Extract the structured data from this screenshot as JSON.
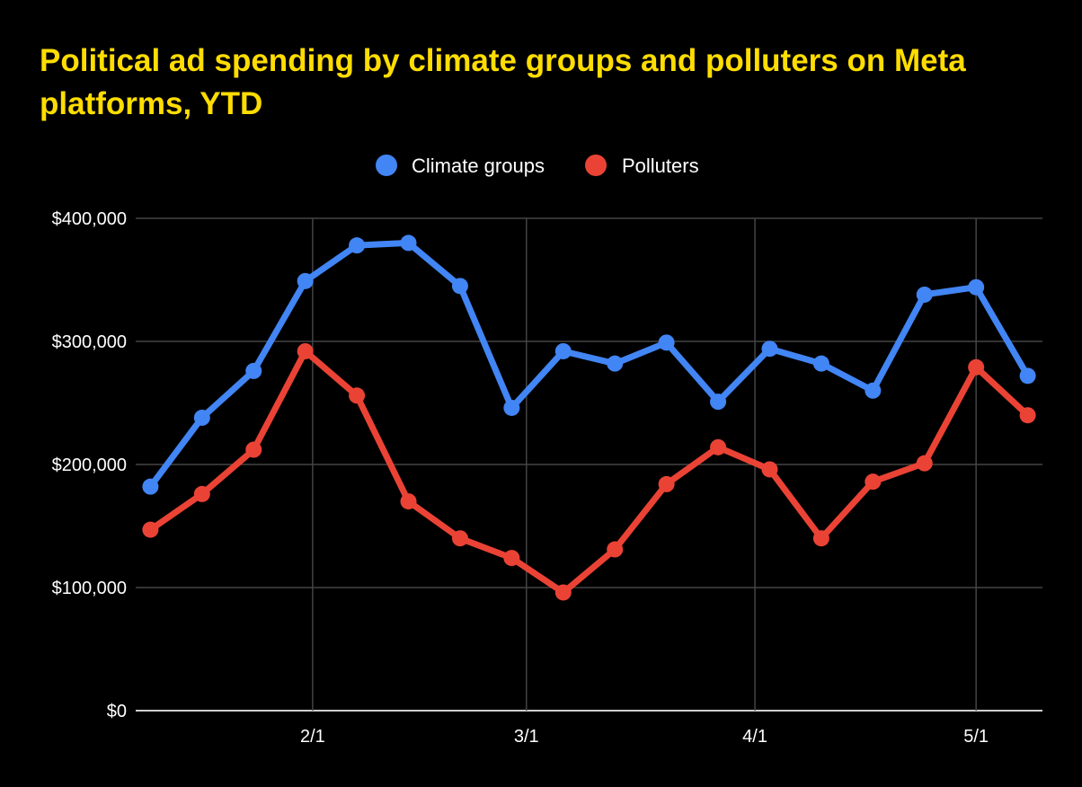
{
  "chart_data": {
    "type": "line",
    "title": "Political ad spending by climate groups and polluters on Meta platforms, YTD",
    "xlabel": "",
    "ylabel": "",
    "x": [
      "2024-01-10",
      "2024-01-17",
      "2024-01-24",
      "2024-01-31",
      "2024-02-07",
      "2024-02-14",
      "2024-02-21",
      "2024-02-28",
      "2024-03-06",
      "2024-03-13",
      "2024-03-20",
      "2024-03-27",
      "2024-04-03",
      "2024-04-10",
      "2024-04-17",
      "2024-04-24",
      "2024-05-01",
      "2024-05-08"
    ],
    "x_ticks": [
      {
        "value": "2024-02-01",
        "label": "2/1"
      },
      {
        "value": "2024-03-01",
        "label": "3/1"
      },
      {
        "value": "2024-04-01",
        "label": "4/1"
      },
      {
        "value": "2024-05-01",
        "label": "5/1"
      }
    ],
    "xlim": [
      "2024-01-08",
      "2024-05-10"
    ],
    "ylim": [
      0,
      400000
    ],
    "y_ticks": [
      {
        "value": 0,
        "label": "$0"
      },
      {
        "value": 100000,
        "label": "$100,000"
      },
      {
        "value": 200000,
        "label": "$200,000"
      },
      {
        "value": 300000,
        "label": "$300,000"
      },
      {
        "value": 400000,
        "label": "$400,000"
      }
    ],
    "grid": true,
    "legend_position": "top",
    "series": [
      {
        "name": "Climate groups",
        "color": "#4285f4",
        "values": [
          182000,
          238000,
          276000,
          349000,
          378000,
          380000,
          345000,
          246000,
          292000,
          282000,
          299000,
          251000,
          294000,
          282000,
          260000,
          338000,
          344000,
          272000
        ]
      },
      {
        "name": "Polluters",
        "color": "#ea4335",
        "values": [
          147000,
          176000,
          212000,
          292000,
          256000,
          170000,
          140000,
          124000,
          96000,
          131000,
          184000,
          214000,
          196000,
          140000,
          186000,
          201000,
          279000,
          240000
        ]
      }
    ]
  }
}
